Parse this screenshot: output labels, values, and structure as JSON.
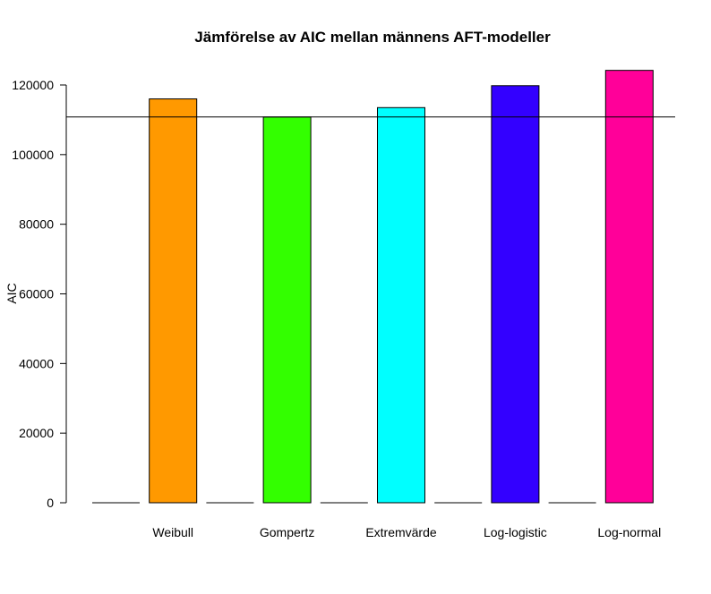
{
  "chart_data": {
    "type": "bar",
    "title": "Jämförelse av AIC mellan männens AFT-modeller",
    "xlabel": "",
    "ylabel": "AIC",
    "categories": [
      "",
      "Weibull",
      "",
      "Gompertz",
      "",
      "Extremvärde",
      "",
      "Log-logistic",
      "",
      "Log-normal"
    ],
    "values": [
      0,
      116000,
      0,
      110800,
      0,
      113500,
      0,
      119800,
      0,
      124200
    ],
    "colors": [
      "#ffffff",
      "#ff9900",
      "#ffffff",
      "#33ff00",
      "#ffffff",
      "#00ffff",
      "#ffffff",
      "#3300ff",
      "#ffffff",
      "#ff0099"
    ],
    "ylim": [
      0,
      120000
    ],
    "yticks": [
      0,
      20000,
      40000,
      60000,
      80000,
      100000,
      120000
    ],
    "reference_line": 110800,
    "grid": false,
    "legend": "none"
  }
}
